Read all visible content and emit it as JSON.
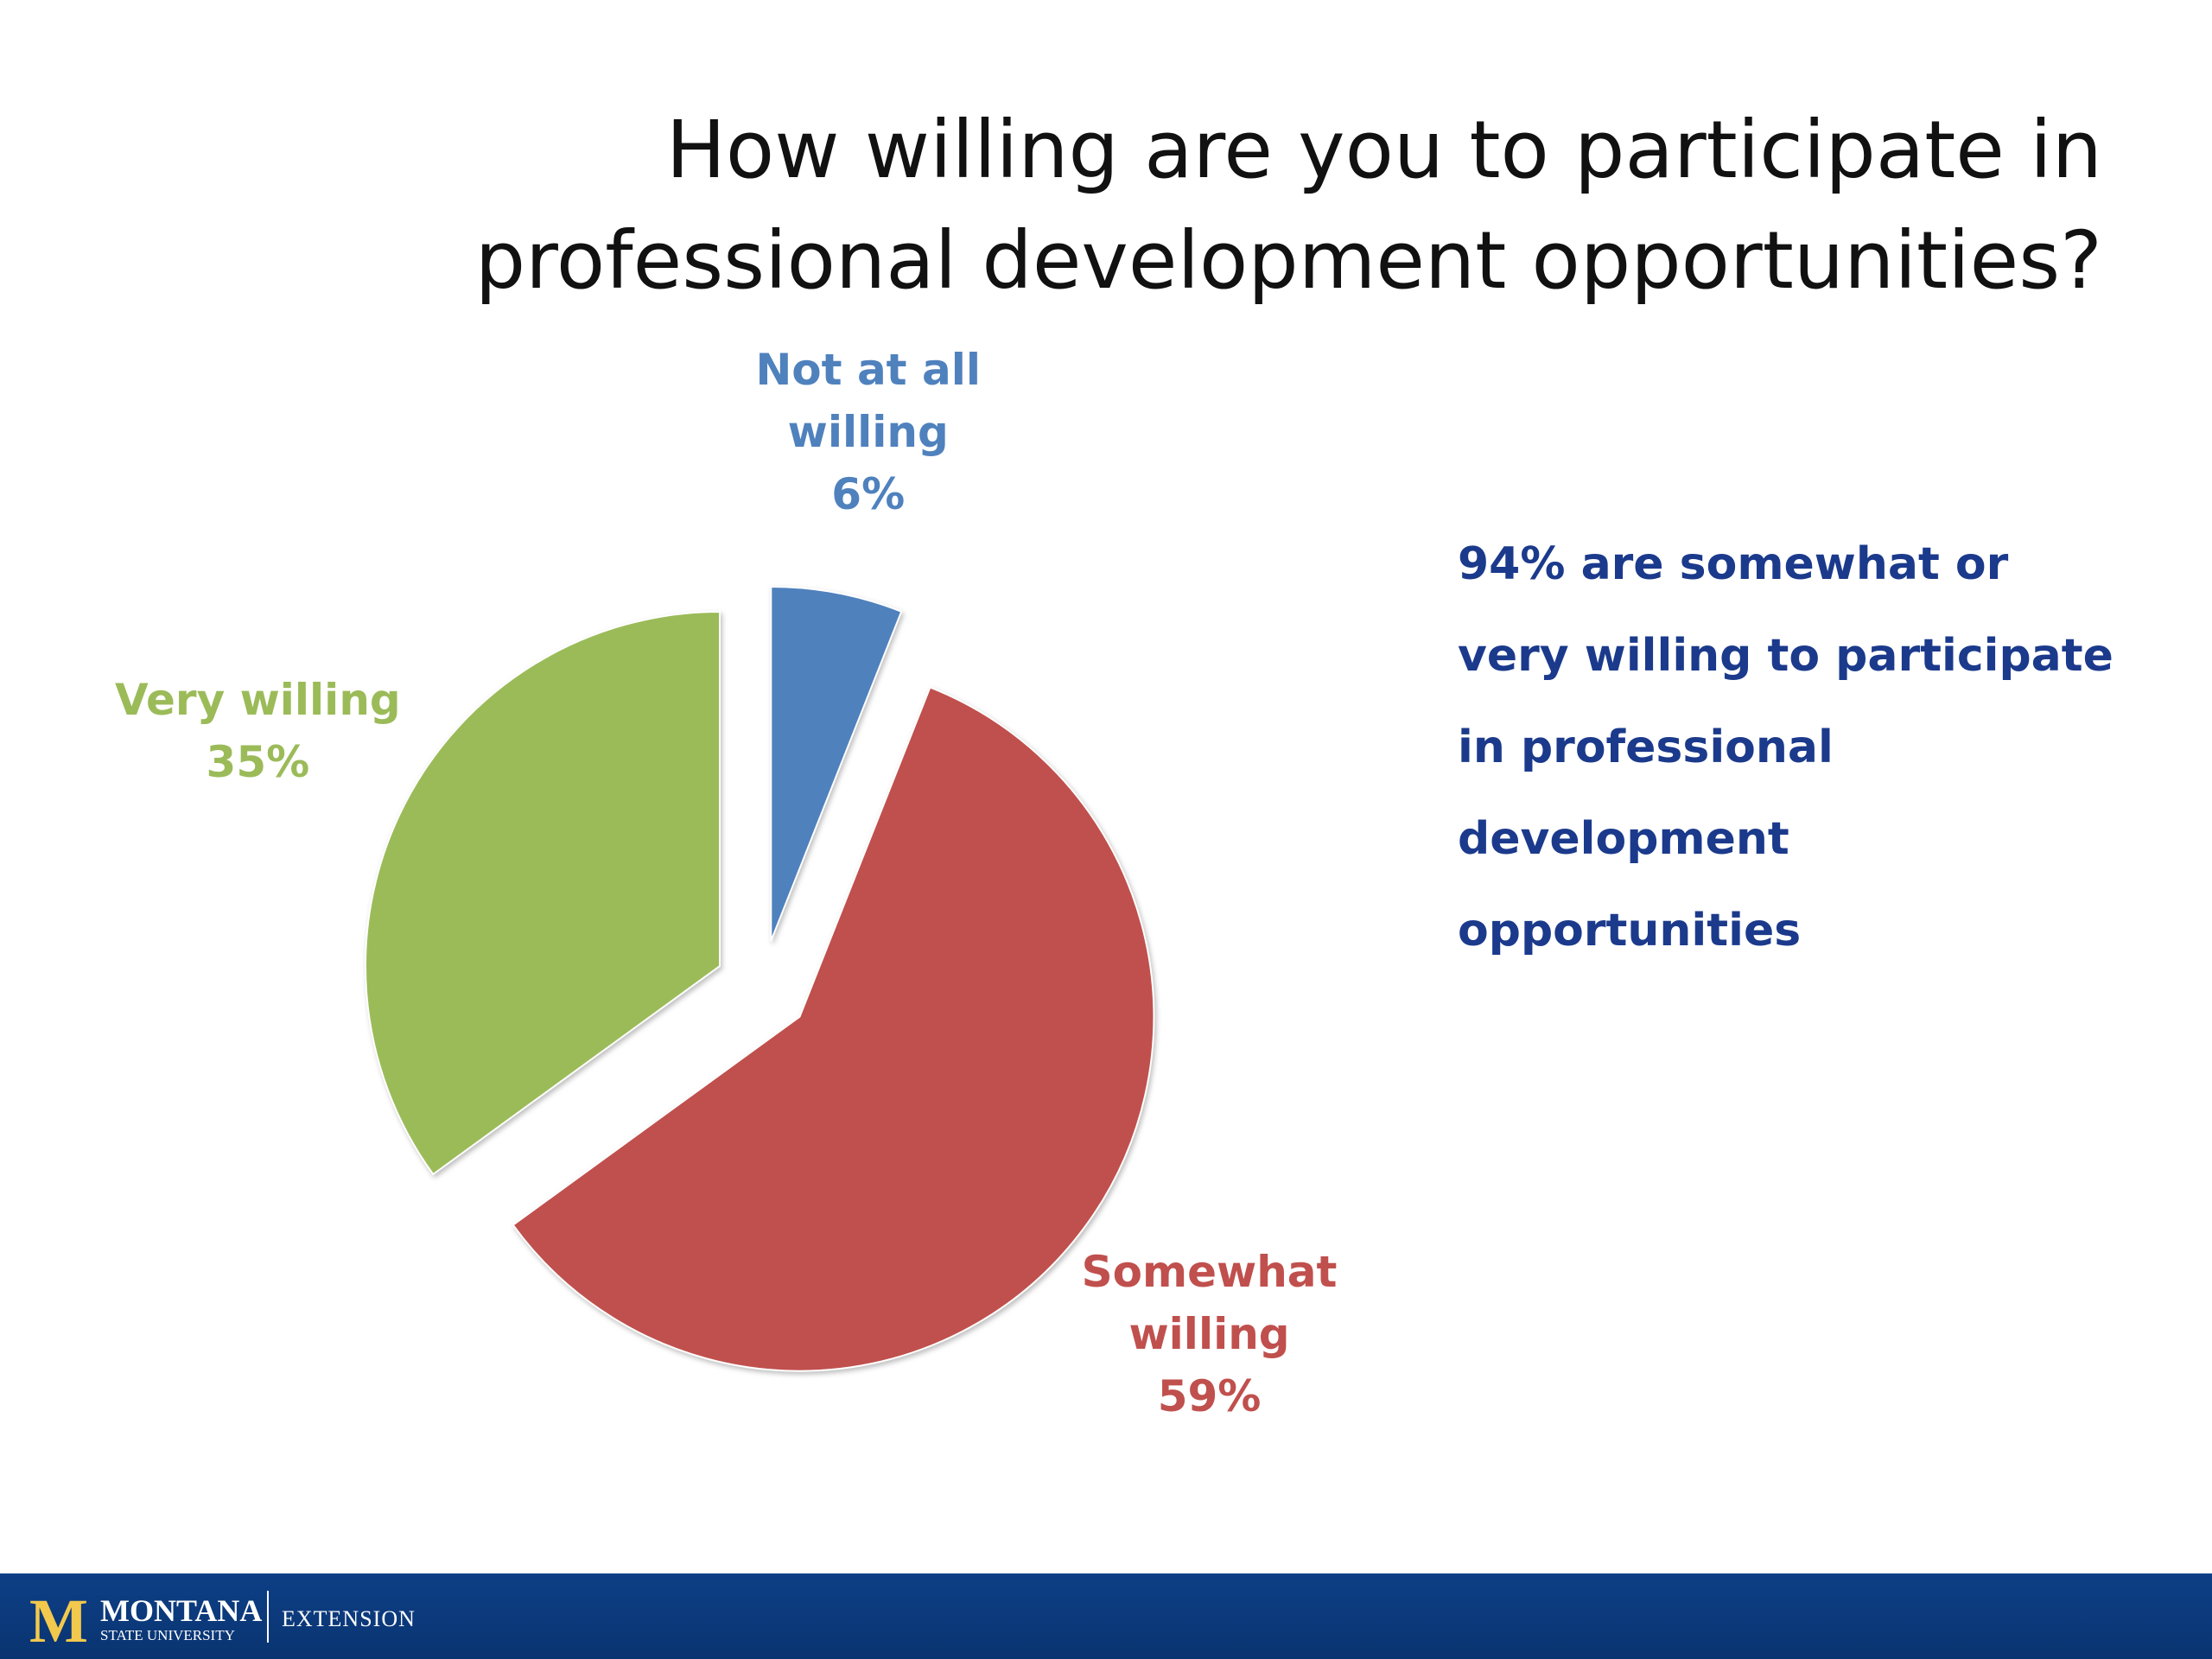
{
  "chart_data": {
    "type": "pie",
    "title": "How willing are you to participate in professional development opportunities?",
    "categories": [
      "Not at all willing",
      "Somewhat willing",
      "Very willing"
    ],
    "values": [
      6,
      59,
      35
    ],
    "value_labels": [
      "6%",
      "59%",
      "35%"
    ],
    "colors": [
      "#4f81bd",
      "#c0504d",
      "#9bbb59"
    ],
    "exploded": true,
    "annotation": "94% are somewhat or very willing to participate in professional development opportunities"
  },
  "footer": {
    "logo_letter": "M",
    "university": "MONTANA",
    "university_sub": "STATE UNIVERSITY",
    "unit": "EXTENSION"
  }
}
